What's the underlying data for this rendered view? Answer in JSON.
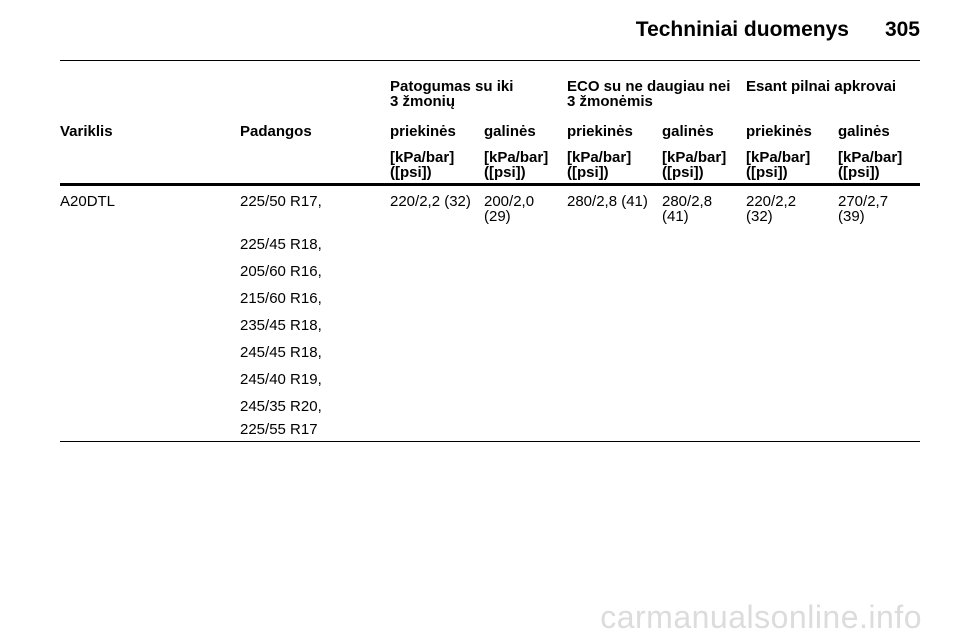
{
  "page": {
    "section_title": "Techniniai duomenys",
    "page_number": "305"
  },
  "table": {
    "group_headers": [
      "Patogumas su iki\n3 žmonių",
      "ECO su ne daugiau nei\n3 žmonėmis",
      "Esant pilnai apkrovai"
    ],
    "columns": [
      "Variklis",
      "Padangos",
      "priekinės",
      "galinės",
      "priekinės",
      "galinės",
      "priekinės",
      "galinės"
    ],
    "unit": "[kPa/bar]\n([psi])",
    "engine": "A20DTL",
    "tires": [
      "225/50 R17,",
      "225/45 R18,",
      "205/60 R16,",
      "215/60 R16,",
      "235/45 R18,",
      "245/45 R18,",
      "245/40 R19,",
      "245/35 R20,",
      "225/55 R17"
    ],
    "pressures": [
      "220/2,2 (32)",
      "200/2,0\n(29)",
      "280/2,8 (41)",
      "280/2,8\n(41)",
      "220/2,2\n(32)",
      "270/2,7\n(39)"
    ]
  },
  "watermark": "carmanualsonline.info"
}
